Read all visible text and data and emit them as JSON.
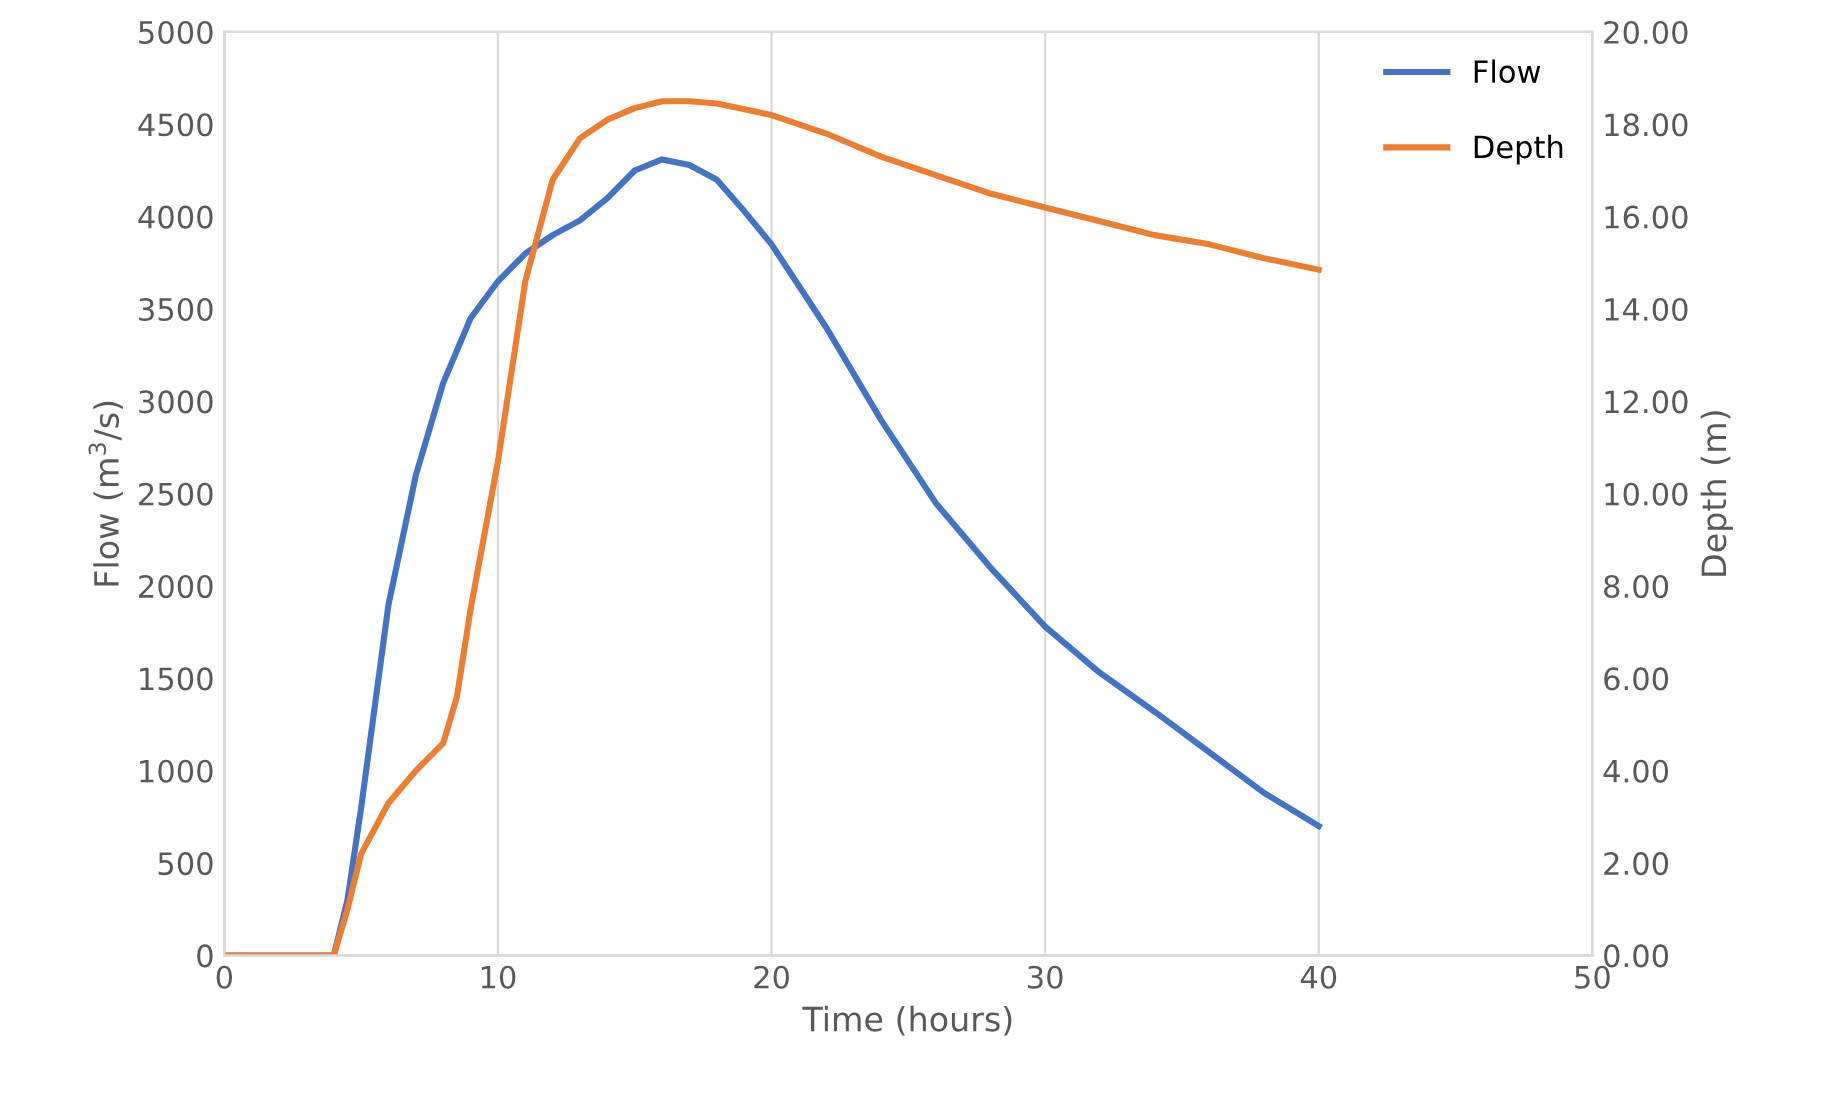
{
  "chart_data": {
    "type": "line",
    "xlabel": "Time (hours)",
    "ylabel": "Flow (m$^{3}$/s)",
    "y2label": "Depth (m)",
    "xlim": [
      0,
      50
    ],
    "xticks": [
      0,
      10,
      20,
      30,
      40,
      50
    ],
    "ylim": [
      0,
      5000
    ],
    "yticks": [
      0,
      500,
      1000,
      1500,
      2000,
      2500,
      3000,
      3500,
      4000,
      4500,
      5000
    ],
    "y2lim": [
      0,
      20
    ],
    "y2ticks": [
      {
        "value": 0,
        "label": "0.00"
      },
      {
        "value": 2,
        "label": "2.00"
      },
      {
        "value": 4,
        "label": "4.00"
      },
      {
        "value": 6,
        "label": "6.00"
      },
      {
        "value": 8,
        "label": "8.00"
      },
      {
        "value": 10,
        "label": "10.00"
      },
      {
        "value": 12,
        "label": "12.00"
      },
      {
        "value": 14,
        "label": "14.00"
      },
      {
        "value": 16,
        "label": "16.00"
      },
      {
        "value": 18,
        "label": "18.00"
      },
      {
        "value": 20,
        "label": "20.00"
      }
    ],
    "grid": "x",
    "legend": "top right",
    "marker": "none",
    "line_style": "solid",
    "series": [
      {
        "name": "Flow",
        "color": "#4472c4",
        "x": [
          0,
          4,
          4.5,
          5,
          6,
          7,
          8,
          9,
          10,
          11,
          12,
          13,
          14,
          15,
          16,
          17,
          18,
          19,
          20,
          22,
          24,
          26,
          28,
          30,
          32,
          34,
          36,
          38,
          40
        ],
        "values": [
          0,
          0,
          300,
          800,
          1900,
          2600,
          3100,
          3450,
          3650,
          3800,
          3900,
          3980,
          4100,
          4250,
          4310,
          4280,
          4200,
          4030,
          3850,
          3400,
          2900,
          2450,
          2100,
          1780,
          1530,
          1320,
          1100,
          880,
          700
        ]
      },
      {
        "name": "Depth",
        "color": "#ed7d31",
        "axis": "y2",
        "x": [
          0,
          4,
          4.5,
          5,
          6,
          7,
          8,
          8.5,
          9,
          10,
          11,
          12,
          13,
          14,
          15,
          16,
          17,
          18,
          20,
          22,
          24,
          26,
          28,
          30,
          32,
          34,
          36,
          38,
          40
        ],
        "values": [
          0,
          0,
          1.0,
          2.2,
          3.3,
          4.0,
          4.6,
          5.6,
          7.5,
          10.7,
          14.6,
          16.8,
          17.7,
          18.1,
          18.35,
          18.5,
          18.5,
          18.45,
          18.2,
          17.8,
          17.3,
          16.9,
          16.5,
          16.2,
          15.9,
          15.6,
          15.4,
          15.1,
          14.85
        ]
      }
    ]
  }
}
